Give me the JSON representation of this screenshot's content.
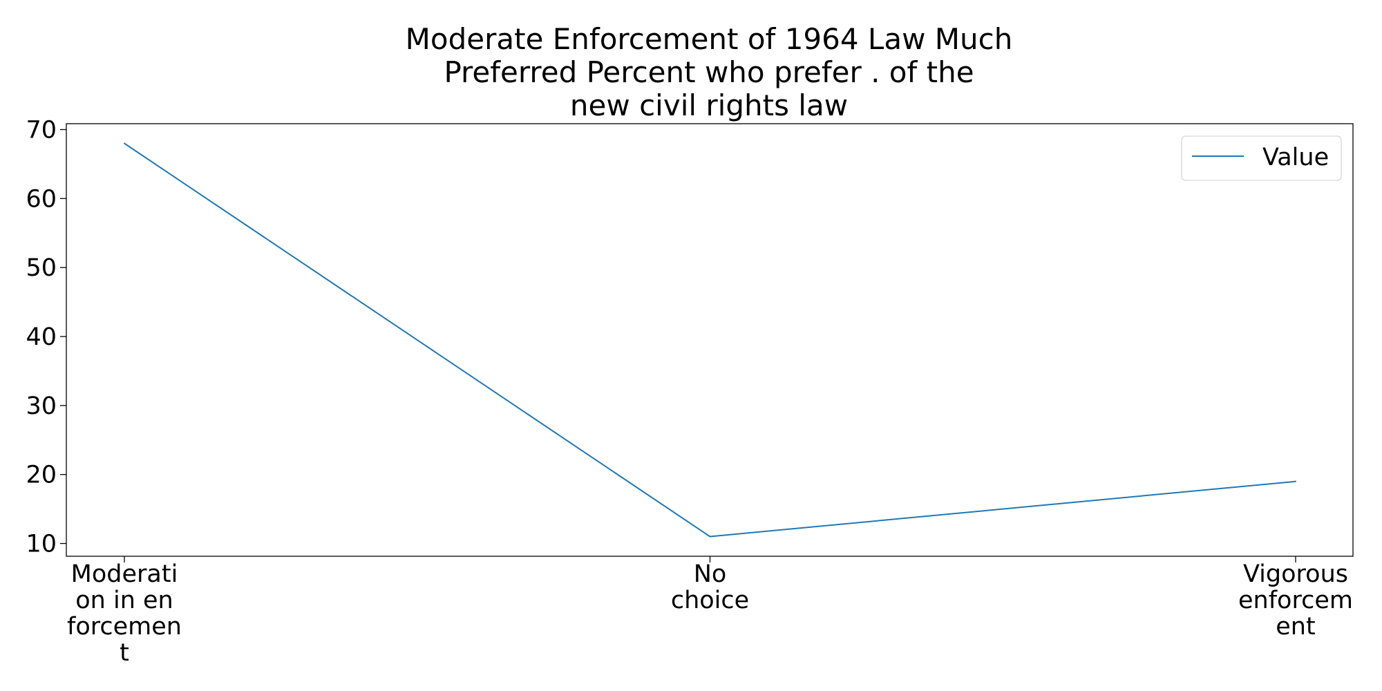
{
  "chart_data": {
    "type": "line",
    "title_lines": [
      "Moderate Enforcement of 1964 Law Much",
      "Preferred Percent who prefer . of the",
      "new civil rights law"
    ],
    "categories": [
      [
        "Moderati",
        "on in en",
        "forcemen",
        "t"
      ],
      [
        "No",
        "choice"
      ],
      [
        "Vigorous",
        "enforcem",
        "ent"
      ]
    ],
    "series": [
      {
        "name": "Value",
        "values": [
          68,
          11,
          19
        ],
        "color": "#1f77b4"
      }
    ],
    "ylim": [
      8.15,
      70.85
    ],
    "yticks": [
      "10",
      "20",
      "30",
      "40",
      "50",
      "60",
      "70"
    ],
    "xlabel": "",
    "ylabel": "",
    "grid": false,
    "legend_position": "top-right"
  }
}
